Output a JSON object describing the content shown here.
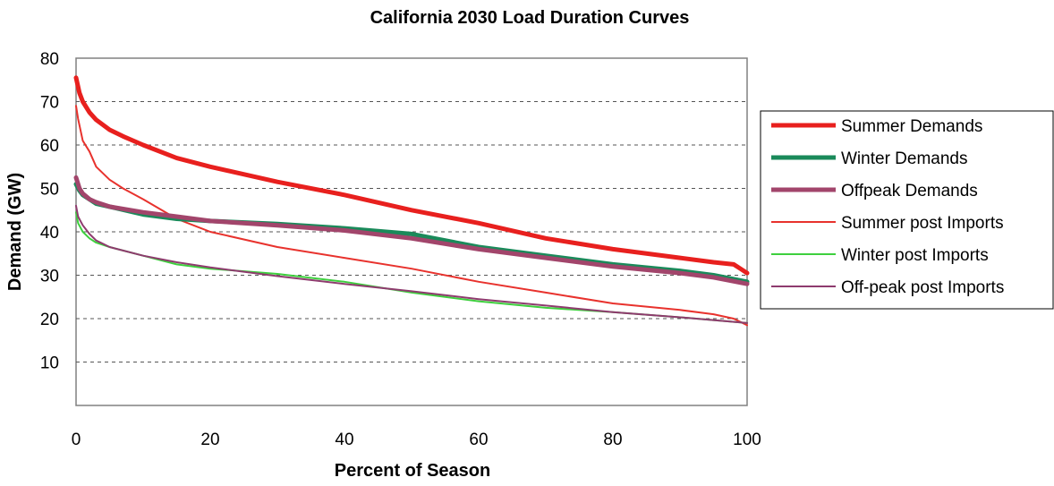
{
  "chart_data": {
    "type": "line",
    "title": "California 2030 Load Duration Curves",
    "xlabel": "Percent of Season",
    "ylabel": "Demand (GW)",
    "xlim": [
      0,
      100
    ],
    "ylim": [
      0,
      80
    ],
    "x_ticks": [
      "0",
      "20",
      "40",
      "60",
      "80",
      "100"
    ],
    "y_ticks": [
      "10",
      "20",
      "30",
      "40",
      "50",
      "60",
      "70",
      "80"
    ],
    "grid": "horizontal dashed",
    "legend_position": "right",
    "series": [
      {
        "name": "Summer Demands",
        "color": "#e8201e",
        "thick": true,
        "x": [
          0,
          0.5,
          1,
          2,
          3,
          5,
          7,
          10,
          15,
          20,
          30,
          40,
          50,
          60,
          70,
          80,
          90,
          95,
          98,
          99,
          100
        ],
        "y": [
          75.5,
          72,
          70,
          67.5,
          65.8,
          63.5,
          62,
          60,
          57,
          55,
          51.5,
          48.5,
          45,
          42,
          38.5,
          36,
          34,
          33,
          32.5,
          31.5,
          30.5
        ]
      },
      {
        "name": "Winter Demands",
        "color": "#1a8a5a",
        "thick": true,
        "x": [
          0,
          0.5,
          1,
          2,
          3,
          5,
          10,
          15,
          20,
          30,
          40,
          50,
          60,
          70,
          80,
          90,
          95,
          100
        ],
        "y": [
          51,
          49.5,
          48.5,
          47.5,
          46.5,
          45.8,
          44,
          43,
          42.5,
          41.8,
          40.8,
          39.5,
          36.5,
          34.5,
          32.5,
          31,
          30,
          28.5
        ]
      },
      {
        "name": "Offpeak Demands",
        "color": "#a2456b",
        "thick": true,
        "x": [
          0,
          0.5,
          1,
          2,
          3,
          5,
          10,
          15,
          20,
          30,
          40,
          50,
          60,
          70,
          80,
          90,
          95,
          100
        ],
        "y": [
          52.5,
          50,
          48.8,
          47.5,
          46.8,
          45.8,
          44.5,
          43.5,
          42.5,
          41.5,
          40.3,
          38.5,
          36,
          34,
          32,
          30.5,
          29.5,
          28
        ]
      },
      {
        "name": "Summer post Imports",
        "color": "#e8322d",
        "thick": false,
        "x": [
          0,
          0.3,
          1,
          2,
          3,
          5,
          7,
          10,
          15,
          20,
          30,
          40,
          50,
          60,
          70,
          80,
          90,
          95,
          98,
          100
        ],
        "y": [
          69,
          66,
          61,
          58.5,
          55,
          52,
          50,
          47.5,
          43,
          40,
          36.5,
          34,
          31.5,
          28.5,
          26,
          23.5,
          22,
          21,
          20,
          18.5
        ]
      },
      {
        "name": "Winter post Imports",
        "color": "#3ecf3e",
        "thick": false,
        "x": [
          0,
          0.3,
          1,
          2,
          3,
          5,
          10,
          15,
          20,
          30,
          40,
          50,
          60,
          70,
          80,
          90,
          100
        ],
        "y": [
          44.5,
          42,
          40,
          38.5,
          37.5,
          36.5,
          34.5,
          32.5,
          31.5,
          30.3,
          28.5,
          26,
          24,
          22.5,
          21.5,
          20.3,
          19
        ]
      },
      {
        "name": "Off-peak post Imports",
        "color": "#8e3b6e",
        "thick": false,
        "x": [
          0,
          0.3,
          1,
          2,
          3,
          5,
          10,
          15,
          20,
          30,
          40,
          50,
          60,
          70,
          80,
          90,
          100
        ],
        "y": [
          46,
          43.5,
          41.5,
          39.5,
          38,
          36.5,
          34.5,
          33,
          31.8,
          29.8,
          28,
          26.3,
          24.5,
          23,
          21.5,
          20.3,
          19
        ]
      }
    ]
  }
}
